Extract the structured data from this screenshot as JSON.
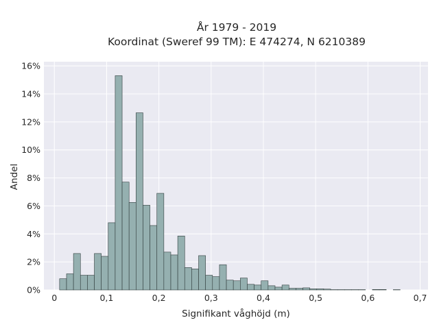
{
  "colors": {
    "plot_background": "#eaeaf2",
    "grid": "#ffffff",
    "bar_fill": "#95b0b0",
    "bar_edge": "#2f3b3b",
    "text": "#262626"
  },
  "chart_data": {
    "type": "bar",
    "title_lines": [
      "År 1979 - 2019",
      "Koordinat (Sweref 99 TM): E 474274, N 6210389"
    ],
    "xlabel": "Signifikant våghöjd (m)",
    "ylabel": "Andel",
    "xlim": [
      -0.02,
      0.715
    ],
    "ylim": [
      0,
      16.3
    ],
    "x_ticks": [
      {
        "value": 0.0,
        "label": "0"
      },
      {
        "value": 0.1,
        "label": "0,1"
      },
      {
        "value": 0.2,
        "label": "0,2"
      },
      {
        "value": 0.3,
        "label": "0,3"
      },
      {
        "value": 0.4,
        "label": "0,4"
      },
      {
        "value": 0.5,
        "label": "0,5"
      },
      {
        "value": 0.6,
        "label": "0,6"
      },
      {
        "value": 0.7,
        "label": "0,7"
      }
    ],
    "y_ticks": [
      {
        "value": 0,
        "label": "0%"
      },
      {
        "value": 2,
        "label": "2%"
      },
      {
        "value": 4,
        "label": "4%"
      },
      {
        "value": 6,
        "label": "6%"
      },
      {
        "value": 8,
        "label": "8%"
      },
      {
        "value": 10,
        "label": "10%"
      },
      {
        "value": 12,
        "label": "12%"
      },
      {
        "value": 14,
        "label": "14%"
      },
      {
        "value": 16,
        "label": "16%"
      }
    ],
    "grid": true,
    "bin_width": 0.0133,
    "bin_start": 0.01,
    "values": [
      0.8,
      1.15,
      2.6,
      1.05,
      1.05,
      2.6,
      2.4,
      4.8,
      15.3,
      7.7,
      6.25,
      12.65,
      6.05,
      4.6,
      6.9,
      2.7,
      2.5,
      3.85,
      1.6,
      1.5,
      2.45,
      1.05,
      0.95,
      1.8,
      0.7,
      0.65,
      0.85,
      0.4,
      0.35,
      0.65,
      0.3,
      0.2,
      0.35,
      0.12,
      0.12,
      0.15,
      0.08,
      0.08,
      0.06,
      0.02,
      0.02,
      0.02,
      0.02,
      0.02,
      0.0,
      0.03,
      0.03,
      0.0,
      0.02
    ]
  }
}
